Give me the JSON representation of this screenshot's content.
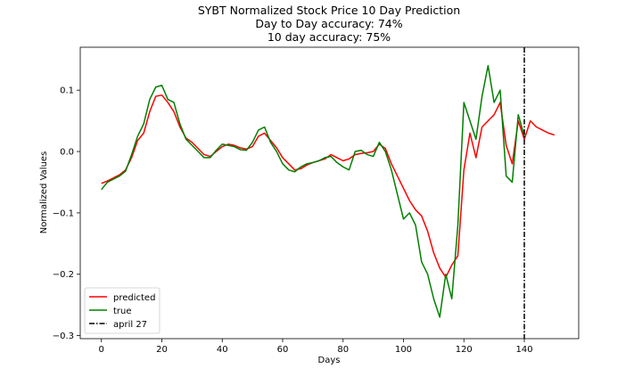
{
  "chart_data": {
    "type": "line",
    "title_lines": [
      "SYBT Normalized Stock Price 10 Day Prediction",
      "Day to Day accuracy: 74%",
      "10 day accuracy: 75%"
    ],
    "xlabel": "Days",
    "ylabel": "Normalized Values",
    "xlim": [
      -7,
      158
    ],
    "ylim": [
      -0.305,
      0.17
    ],
    "xticks": [
      0,
      20,
      40,
      60,
      80,
      100,
      120,
      140
    ],
    "yticks": [
      0.1,
      0.0,
      -0.1,
      -0.2,
      -0.3
    ],
    "ytick_labels": [
      "0.1",
      "0.0",
      "−0.1",
      "−0.2",
      "−0.3"
    ],
    "grid": false,
    "legend_position": "lower-left",
    "vline": {
      "x": 140,
      "label": "april 27",
      "color": "#000000",
      "style": "dashdot"
    },
    "series": [
      {
        "name": "predicted",
        "color": "#ff0000",
        "x": [
          0,
          2,
          4,
          6,
          8,
          10,
          12,
          14,
          16,
          18,
          20,
          22,
          24,
          26,
          28,
          30,
          32,
          34,
          36,
          38,
          40,
          42,
          44,
          46,
          48,
          50,
          52,
          54,
          56,
          58,
          60,
          62,
          64,
          66,
          68,
          70,
          72,
          74,
          76,
          78,
          80,
          82,
          84,
          86,
          88,
          90,
          92,
          94,
          96,
          98,
          100,
          102,
          104,
          106,
          108,
          110,
          112,
          114,
          116,
          118,
          120,
          122,
          124,
          126,
          128,
          130,
          132,
          134,
          136,
          138,
          140,
          142,
          144,
          146,
          148,
          150
        ],
        "y": [
          -0.052,
          -0.048,
          -0.043,
          -0.038,
          -0.03,
          -0.01,
          0.018,
          0.03,
          0.065,
          0.09,
          0.092,
          0.08,
          0.065,
          0.04,
          0.022,
          0.015,
          0.005,
          -0.005,
          -0.008,
          0.0,
          0.008,
          0.012,
          0.01,
          0.006,
          0.004,
          0.008,
          0.025,
          0.03,
          0.018,
          0.006,
          -0.01,
          -0.02,
          -0.03,
          -0.028,
          -0.022,
          -0.018,
          -0.015,
          -0.012,
          -0.005,
          -0.01,
          -0.015,
          -0.012,
          -0.005,
          -0.003,
          -0.002,
          0.0,
          0.012,
          0.005,
          -0.02,
          -0.04,
          -0.06,
          -0.08,
          -0.095,
          -0.105,
          -0.13,
          -0.165,
          -0.19,
          -0.205,
          -0.185,
          -0.17,
          -0.03,
          0.03,
          -0.01,
          0.04,
          0.05,
          0.06,
          0.08,
          0.01,
          -0.02,
          0.05,
          0.02,
          0.05,
          0.04,
          0.035,
          0.03,
          0.027
        ]
      },
      {
        "name": "true",
        "color": "#008000",
        "x": [
          0,
          2,
          4,
          6,
          8,
          10,
          12,
          14,
          16,
          18,
          20,
          22,
          24,
          26,
          28,
          30,
          32,
          34,
          36,
          38,
          40,
          42,
          44,
          46,
          48,
          50,
          52,
          54,
          56,
          58,
          60,
          62,
          64,
          66,
          68,
          70,
          72,
          74,
          76,
          78,
          80,
          82,
          84,
          86,
          88,
          90,
          92,
          94,
          96,
          98,
          100,
          102,
          104,
          106,
          108,
          110,
          112,
          114,
          116,
          118,
          120,
          122,
          124,
          126,
          128,
          130,
          132,
          134,
          136,
          138,
          140
        ],
        "y": [
          -0.062,
          -0.05,
          -0.045,
          -0.04,
          -0.032,
          -0.005,
          0.025,
          0.045,
          0.085,
          0.105,
          0.108,
          0.085,
          0.08,
          0.045,
          0.02,
          0.01,
          0.0,
          -0.01,
          -0.01,
          0.002,
          0.012,
          0.01,
          0.008,
          0.003,
          0.002,
          0.015,
          0.035,
          0.04,
          0.015,
          0.0,
          -0.02,
          -0.03,
          -0.033,
          -0.025,
          -0.02,
          -0.018,
          -0.015,
          -0.01,
          -0.008,
          -0.018,
          -0.025,
          -0.03,
          0.0,
          0.002,
          -0.005,
          -0.008,
          0.015,
          0.0,
          -0.03,
          -0.07,
          -0.11,
          -0.1,
          -0.12,
          -0.18,
          -0.2,
          -0.24,
          -0.27,
          -0.2,
          -0.24,
          -0.12,
          0.08,
          0.05,
          0.02,
          0.09,
          0.14,
          0.08,
          0.1,
          -0.04,
          -0.05,
          0.06,
          0.025
        ]
      }
    ]
  }
}
